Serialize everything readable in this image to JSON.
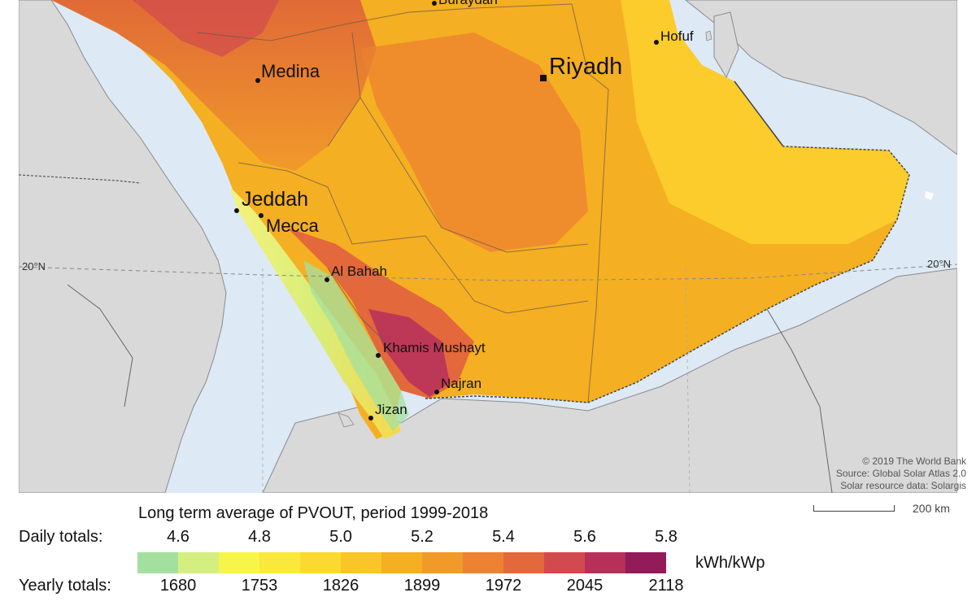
{
  "map": {
    "colors": {
      "sea": "#dde9f5",
      "land": "#d9d9d9",
      "border": "#555555"
    },
    "cities": {
      "buraydah": "Buraydah",
      "hofuf": "Hofuf",
      "riyadh": "Riyadh",
      "medina": "Medina",
      "jeddah": "Jeddah",
      "mecca": "Mecca",
      "al_bahah": "Al Bahah",
      "khamis_mushayt": "Khamis Mushayt",
      "najran": "Najran",
      "jizan": "Jizan"
    },
    "latitude_labels": {
      "left": "20°N",
      "right": "20°N"
    },
    "credits": [
      "© 2019 The World Bank",
      "Source: Global Solar Atlas 2.0",
      "Solar resource data: Solargis"
    ]
  },
  "legend": {
    "title": "Long term average of PVOUT, period 1999-2018",
    "daily_label": "Daily totals:",
    "yearly_label": "Yearly totals:",
    "daily_ticks": [
      "4.6",
      "4.8",
      "5.0",
      "5.2",
      "5.4",
      "5.6",
      "5.8"
    ],
    "yearly_ticks": [
      "1680",
      "1753",
      "1826",
      "1899",
      "1972",
      "2045",
      "2118"
    ],
    "unit": "kWh/kWp",
    "colors": [
      "#a3e0a0",
      "#d4ef80",
      "#f7f54a",
      "#fbe83c",
      "#fbda30",
      "#f9c528",
      "#f5af22",
      "#f19a2a",
      "#ec8232",
      "#e3683c",
      "#d24a4e",
      "#b6305a",
      "#931b5a"
    ]
  },
  "scale": {
    "label": "200 km"
  }
}
